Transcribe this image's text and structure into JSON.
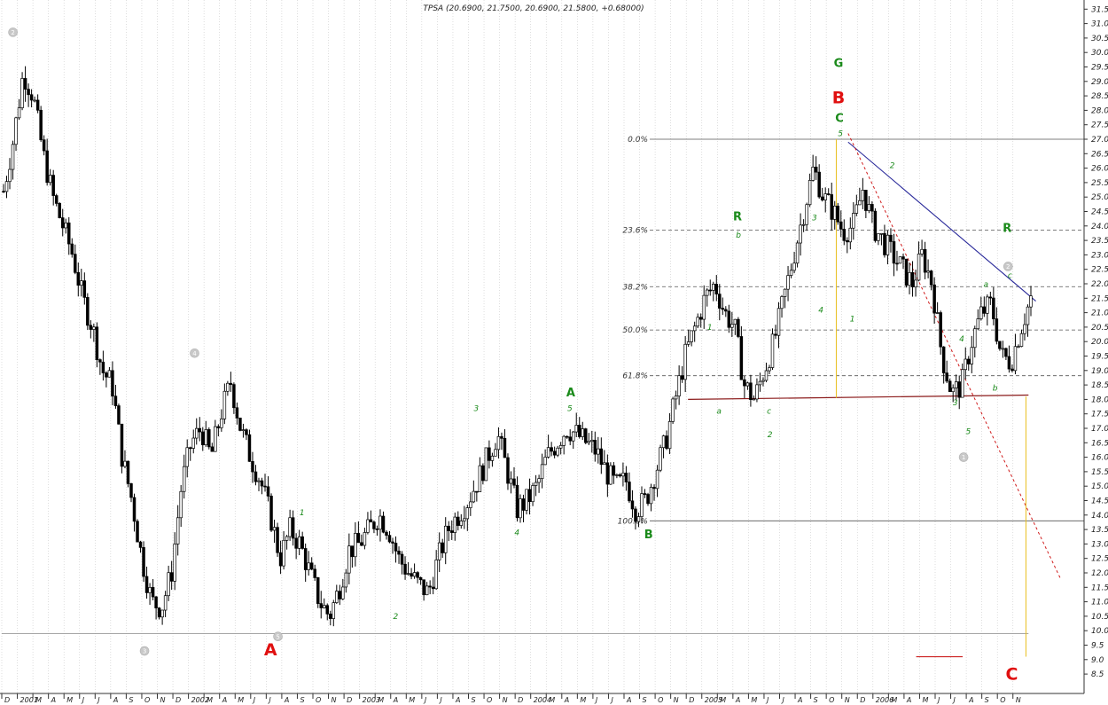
{
  "chart_data": {
    "type": "candlestick",
    "title": "TPSA (20.6900, 21.7500, 20.6900, 21.5800, +0.68000)",
    "y_range": [
      8,
      32
    ],
    "y_ticks": [
      8.5,
      9.0,
      9.5,
      10.0,
      10.5,
      11.0,
      11.5,
      12.0,
      12.5,
      13.0,
      13.5,
      14.0,
      14.5,
      15.0,
      15.5,
      16.0,
      16.5,
      17.0,
      17.5,
      18.0,
      18.5,
      19.0,
      19.5,
      20.0,
      20.5,
      21.0,
      21.5,
      22.0,
      22.5,
      23.0,
      23.5,
      24.0,
      24.5,
      25.0,
      25.5,
      26.0,
      26.5,
      27.0,
      27.5,
      28.0,
      28.5,
      29.0,
      29.5,
      30.0,
      30.5,
      31.0,
      31.5
    ],
    "month_ticks": [
      "D",
      "2001",
      "M",
      "A",
      "M",
      "J",
      "J",
      "A",
      "S",
      "O",
      "N",
      "D",
      "2002",
      "M",
      "A",
      "M",
      "J",
      "J",
      "A",
      "S",
      "O",
      "N",
      "D",
      "2003",
      "M",
      "A",
      "M",
      "J",
      "J",
      "A",
      "S",
      "O",
      "N",
      "D",
      "2004",
      "M",
      "A",
      "M",
      "J",
      "J",
      "A",
      "S",
      "O",
      "N",
      "D",
      "2005",
      "M",
      "A",
      "M",
      "J",
      "J",
      "A",
      "S",
      "O",
      "N",
      "D",
      "2006",
      "M",
      "A",
      "M",
      "J",
      "J",
      "A",
      "S",
      "O",
      "N"
    ],
    "close_path": [
      [
        0,
        25.2
      ],
      [
        1,
        27.0
      ],
      [
        2,
        29.3
      ],
      [
        3,
        28.5
      ],
      [
        4,
        26.5
      ],
      [
        5,
        25.0
      ],
      [
        6,
        24.0
      ],
      [
        7,
        23.0
      ],
      [
        8,
        21.5
      ],
      [
        9,
        20.5
      ],
      [
        10,
        19.0
      ],
      [
        11,
        18.5
      ],
      [
        12,
        16.0
      ],
      [
        13,
        14.5
      ],
      [
        14,
        12.5
      ],
      [
        15,
        11.0
      ],
      [
        16,
        10.8
      ],
      [
        17,
        12.0
      ],
      [
        18,
        15.0
      ],
      [
        19,
        16.5
      ],
      [
        20,
        17.0
      ],
      [
        21,
        16.0
      ],
      [
        22,
        17.5
      ],
      [
        23,
        18.6
      ],
      [
        24,
        17.0
      ],
      [
        25,
        16.0
      ],
      [
        26,
        15.2
      ],
      [
        27,
        14.0
      ],
      [
        28,
        12.5
      ],
      [
        29,
        13.5
      ],
      [
        30,
        13.0
      ],
      [
        31,
        12.0
      ],
      [
        32,
        11.0
      ],
      [
        33,
        10.5
      ],
      [
        34,
        11.5
      ],
      [
        35,
        12.8
      ],
      [
        36,
        13.0
      ],
      [
        37,
        13.5
      ],
      [
        38,
        14.0
      ],
      [
        39,
        13.5
      ],
      [
        40,
        12.5
      ],
      [
        41,
        12.0
      ],
      [
        42,
        11.6
      ],
      [
        43,
        11.3
      ],
      [
        44,
        12.5
      ],
      [
        45,
        13.5
      ],
      [
        46,
        14.0
      ],
      [
        47,
        14.5
      ],
      [
        48,
        15.2
      ],
      [
        49,
        16.0
      ],
      [
        50,
        16.8
      ],
      [
        51,
        15.5
      ],
      [
        52,
        14.2
      ],
      [
        53,
        14.5
      ],
      [
        54,
        15.0
      ],
      [
        55,
        16.0
      ],
      [
        56,
        16.5
      ],
      [
        57,
        17.0
      ],
      [
        58,
        16.8
      ],
      [
        59,
        16.5
      ],
      [
        60,
        16.2
      ],
      [
        61,
        15.5
      ],
      [
        62,
        15.0
      ],
      [
        63,
        15.2
      ],
      [
        64,
        14.2
      ],
      [
        65,
        14.5
      ],
      [
        66,
        15.5
      ],
      [
        67,
        16.5
      ],
      [
        68,
        18.0
      ],
      [
        69,
        19.5
      ],
      [
        70,
        20.5
      ],
      [
        71,
        21.5
      ],
      [
        72,
        22.0
      ],
      [
        73,
        21.0
      ],
      [
        74,
        20.5
      ],
      [
        75,
        18.5
      ],
      [
        76,
        18.0
      ],
      [
        77,
        19.0
      ],
      [
        78,
        20.0
      ],
      [
        79,
        21.5
      ],
      [
        80,
        23.0
      ],
      [
        81,
        24.5
      ],
      [
        82,
        26.0
      ],
      [
        83,
        25.0
      ],
      [
        84,
        24.5
      ],
      [
        85,
        23.8
      ],
      [
        86,
        24.0
      ],
      [
        87,
        25.3
      ],
      [
        88,
        24.0
      ],
      [
        89,
        23.5
      ],
      [
        90,
        23.0
      ],
      [
        91,
        22.5
      ],
      [
        92,
        22.0
      ],
      [
        93,
        23.0
      ],
      [
        94,
        22.0
      ],
      [
        95,
        19.5
      ],
      [
        96,
        18.2
      ],
      [
        97,
        18.5
      ],
      [
        98,
        20.0
      ],
      [
        99,
        21.0
      ],
      [
        100,
        21.3
      ],
      [
        101,
        19.5
      ],
      [
        102,
        19.3
      ],
      [
        103,
        20.5
      ],
      [
        104,
        21.5
      ]
    ],
    "horizontal_levels": [
      {
        "label": "0.0%",
        "value": 27.0
      },
      {
        "label": "23.6%",
        "value": 23.86
      },
      {
        "label": "38.2%",
        "value": 21.9
      },
      {
        "label": "50.0%",
        "value": 20.4
      },
      {
        "label": "61.8%",
        "value": 18.82
      },
      {
        "label": "100.0%",
        "value": 13.8
      }
    ],
    "extra_lines": [
      {
        "name": "support-line",
        "color": "#8b1a1a",
        "from": [
          78.2,
          18.0
        ],
        "to": [
          117.0,
          18.15
        ]
      },
      {
        "name": "target-line",
        "color": "#cc2222",
        "from": [
          104.2,
          9.1
        ],
        "to": [
          109.5,
          9.1
        ]
      },
      {
        "name": "lower-line",
        "color": "#999999",
        "from": [
          0,
          9.9
        ],
        "to": [
          117.0,
          9.9
        ]
      }
    ],
    "wave_labels": [
      {
        "text": "A",
        "x": 29.2,
        "y": 9.15,
        "color": "#e01010",
        "size": "big"
      },
      {
        "text": "B",
        "x": 90.5,
        "y": 28.25,
        "color": "#e01010",
        "size": "big"
      },
      {
        "text": "C",
        "x": 109.2,
        "y": 8.3,
        "color": "#e01010",
        "size": "big"
      },
      {
        "text": "G",
        "x": 90.5,
        "y": 29.5,
        "color": "#1a8a1a",
        "size": "med"
      },
      {
        "text": "C",
        "x": 90.6,
        "y": 27.6,
        "color": "#1a8a1a",
        "size": "med"
      },
      {
        "text": "R",
        "x": 79.6,
        "y": 24.2,
        "color": "#1a8a1a",
        "size": "med"
      },
      {
        "text": "R",
        "x": 108.7,
        "y": 23.8,
        "color": "#1a8a1a",
        "size": "med"
      },
      {
        "text": "A",
        "x": 61.6,
        "y": 18.1,
        "color": "#1a8a1a",
        "size": "med"
      },
      {
        "text": "B",
        "x": 70.0,
        "y": 13.2,
        "color": "#1a8a1a",
        "size": "med"
      },
      {
        "text": "1",
        "x": 32.6,
        "y": 14.0,
        "color": "#1a8a1a",
        "size": "sm"
      },
      {
        "text": "2",
        "x": 42.7,
        "y": 10.4,
        "color": "#1a8a1a",
        "size": "sm"
      },
      {
        "text": "3",
        "x": 51.4,
        "y": 17.6,
        "color": "#1a8a1a",
        "size": "sm"
      },
      {
        "text": "4",
        "x": 55.8,
        "y": 13.3,
        "color": "#1a8a1a",
        "size": "sm"
      },
      {
        "text": "5",
        "x": 61.5,
        "y": 17.6,
        "color": "#1a8a1a",
        "size": "sm"
      },
      {
        "text": "a",
        "x": 77.6,
        "y": 17.5,
        "color": "#1a8a1a",
        "size": "sm"
      },
      {
        "text": "b",
        "x": 79.7,
        "y": 23.6,
        "color": "#1a8a1a",
        "size": "sm"
      },
      {
        "text": "c",
        "x": 83.0,
        "y": 17.5,
        "color": "#1a8a1a",
        "size": "sm"
      },
      {
        "text": "1",
        "x": 76.6,
        "y": 20.4,
        "color": "#1a8a1a",
        "size": "sm"
      },
      {
        "text": "2",
        "x": 83.1,
        "y": 16.7,
        "color": "#1a8a1a",
        "size": "sm"
      },
      {
        "text": "3",
        "x": 87.9,
        "y": 24.2,
        "color": "#1a8a1a",
        "size": "sm"
      },
      {
        "text": "4",
        "x": 88.6,
        "y": 21.0,
        "color": "#1a8a1a",
        "size": "sm"
      },
      {
        "text": "5",
        "x": 90.7,
        "y": 27.1,
        "color": "#1a8a1a",
        "size": "sm"
      },
      {
        "text": "1",
        "x": 92.0,
        "y": 20.7,
        "color": "#1a8a1a",
        "size": "sm"
      },
      {
        "text": "2",
        "x": 96.3,
        "y": 26.0,
        "color": "#1a8a1a",
        "size": "sm"
      },
      {
        "text": "3",
        "x": 103.1,
        "y": 17.8,
        "color": "#1a8a1a",
        "size": "sm"
      },
      {
        "text": "4",
        "x": 103.8,
        "y": 20.0,
        "color": "#1a8a1a",
        "size": "sm"
      },
      {
        "text": "5",
        "x": 104.5,
        "y": 16.8,
        "color": "#1a8a1a",
        "size": "sm"
      },
      {
        "text": "a",
        "x": 106.4,
        "y": 21.9,
        "color": "#1a8a1a",
        "size": "sm"
      },
      {
        "text": "b",
        "x": 107.4,
        "y": 18.3,
        "color": "#1a8a1a",
        "size": "sm"
      },
      {
        "text": "c",
        "x": 109.0,
        "y": 22.2,
        "color": "#1a8a1a",
        "size": "sm"
      }
    ],
    "circle_markers": [
      {
        "text": "2",
        "x": 1.4,
        "y": 30.7
      },
      {
        "text": "4",
        "x": 21.0,
        "y": 19.6
      },
      {
        "text": "3",
        "x": 15.6,
        "y": 9.3
      },
      {
        "text": "5",
        "x": 30.0,
        "y": 9.8
      },
      {
        "text": "2",
        "x": 108.8,
        "y": 22.6
      },
      {
        "text": "1",
        "x": 104.0,
        "y": 16.0
      }
    ]
  }
}
